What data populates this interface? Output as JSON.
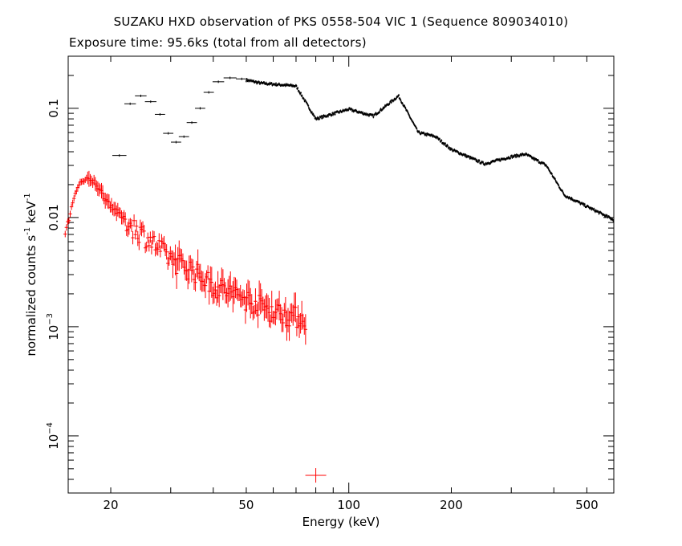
{
  "chart_data": {
    "type": "scatter",
    "title": "SUZAKU HXD observation of PKS 0558-504 VIC 1 (Sequence 809034010)",
    "subtitle": "Exposure time: 95.6ks (total from all detectors)",
    "xlabel": "Energy (keV)",
    "ylabel_main": "normalized counts s",
    "ylabel_exp1": "-1",
    "ylabel_mid": " keV",
    "ylabel_exp2": "-1",
    "xscale": "log",
    "yscale": "log",
    "xlim": [
      15,
      600
    ],
    "ylim": [
      3e-05,
      0.3
    ],
    "xticks": [
      {
        "value": 20,
        "label": "20"
      },
      {
        "value": 50,
        "label": "50"
      },
      {
        "value": 100,
        "label": "100"
      },
      {
        "value": 200,
        "label": "200"
      },
      {
        "value": 500,
        "label": "500"
      }
    ],
    "yticks": [
      {
        "value": 0.1,
        "mant": "0.1",
        "exp": ""
      },
      {
        "value": 0.01,
        "mant": "0.01",
        "exp": ""
      },
      {
        "value": 0.001,
        "mant": "10",
        "exp": "−3"
      },
      {
        "value": 0.0001,
        "mant": "10",
        "exp": "−4"
      }
    ],
    "series": [
      {
        "color": "#000000",
        "key_x": [
          21.2,
          26,
          30,
          37,
          47,
          55,
          70,
          80,
          100,
          118,
          140,
          160,
          180,
          200,
          250,
          300,
          330,
          380,
          430,
          600
        ],
        "key_y": [
          0.037,
          0.13,
          0.07,
          0.06,
          0.19,
          0.17,
          0.16,
          0.08,
          0.098,
          0.085,
          0.13,
          0.06,
          0.055,
          0.042,
          0.031,
          0.036,
          0.038,
          0.03,
          0.016,
          0.0095
        ],
        "points": [
          [
            21.2,
            0.037,
            1.1
          ],
          [
            22.8,
            0.11,
            0.9
          ],
          [
            24.5,
            0.13,
            0.9
          ],
          [
            26.2,
            0.115,
            0.9
          ],
          [
            27.9,
            0.088,
            0.8
          ],
          [
            29.5,
            0.059,
            0.8
          ],
          [
            31.1,
            0.049,
            0.8
          ],
          [
            32.8,
            0.055,
            0.8
          ],
          [
            34.6,
            0.074,
            0.8
          ],
          [
            36.6,
            0.1,
            0.8
          ],
          [
            38.8,
            0.14,
            0.8
          ],
          [
            41.4,
            0.175,
            0.9
          ],
          [
            44.8,
            0.19,
            1.0
          ],
          [
            48.5,
            0.186,
            0.9
          ]
        ]
      },
      {
        "color": "#ff0000",
        "key_x": [
          14.7,
          15.3,
          15.8,
          16.3,
          17,
          18,
          19,
          20,
          22,
          25,
          30,
          35,
          40,
          50,
          60,
          75
        ],
        "key_y": [
          0.007,
          0.012,
          0.018,
          0.021,
          0.022,
          0.021,
          0.016,
          0.013,
          0.0095,
          0.007,
          0.0042,
          0.0033,
          0.0024,
          0.0018,
          0.0014,
          0.00118
        ],
        "special_points": [
          [
            80,
            4.35e-05
          ]
        ]
      }
    ]
  }
}
